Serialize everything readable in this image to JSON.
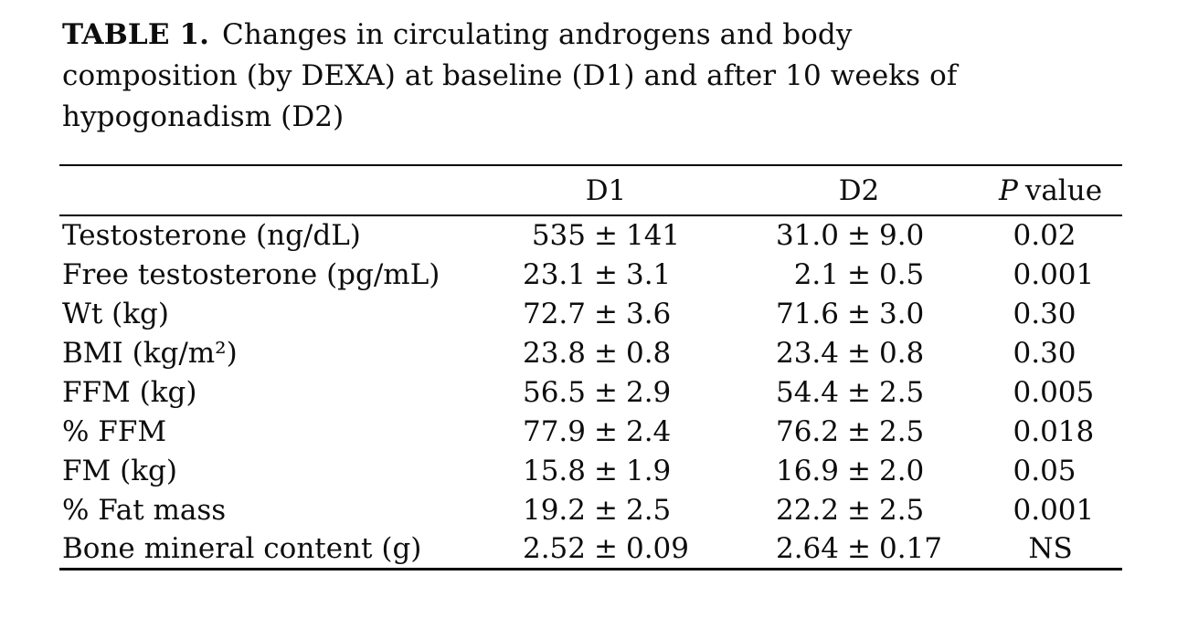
{
  "caption": {
    "label": "TABLE 1.",
    "line1_rest": "Changes in circulating androgens and body",
    "line2": "composition (by DEXA) at baseline (D1) and after 10 weeks of",
    "line3": "hypogonadism (D2)"
  },
  "table": {
    "plus_minus": "±",
    "header": {
      "label_col": "",
      "d1": "D1",
      "d2": "D2",
      "p_italic": "P",
      "p_rest": "value"
    },
    "rows": [
      {
        "label": "Testosterone (ng/dL)",
        "d1_mean": "535",
        "d1_sd": "141",
        "d2_mean": "31.0",
        "d2_sd": "9.0",
        "p": "0.02"
      },
      {
        "label": "Free testosterone (pg/mL)",
        "d1_mean": "23.1",
        "d1_sd": "3.1",
        "d2_mean": "2.1",
        "d2_sd": "0.5",
        "p": "0.001"
      },
      {
        "label": "Wt (kg)",
        "d1_mean": "72.7",
        "d1_sd": "3.6",
        "d2_mean": "71.6",
        "d2_sd": "3.0",
        "p": "0.30"
      },
      {
        "label": "BMI (kg/m²)",
        "d1_mean": "23.8",
        "d1_sd": "0.8",
        "d2_mean": "23.4",
        "d2_sd": "0.8",
        "p": "0.30"
      },
      {
        "label": "FFM (kg)",
        "d1_mean": "56.5",
        "d1_sd": "2.9",
        "d2_mean": "54.4",
        "d2_sd": "2.5",
        "p": "0.005"
      },
      {
        "label": "% FFM",
        "d1_mean": "77.9",
        "d1_sd": "2.4",
        "d2_mean": "76.2",
        "d2_sd": "2.5",
        "p": "0.018"
      },
      {
        "label": "FM (kg)",
        "d1_mean": "15.8",
        "d1_sd": "1.9",
        "d2_mean": "16.9",
        "d2_sd": "2.0",
        "p": "0.05"
      },
      {
        "label": "% Fat mass",
        "d1_mean": "19.2",
        "d1_sd": "2.5",
        "d2_mean": "22.2",
        "d2_sd": "2.5",
        "p": "0.001"
      },
      {
        "label": "Bone mineral content (g)",
        "d1_mean": "2.52",
        "d1_sd": "0.09",
        "d2_mean": "2.64",
        "d2_sd": "0.17",
        "p": "NS"
      }
    ]
  },
  "colors": {
    "background": "#ffffff",
    "text": "#0d0d0d",
    "rule": "#000000"
  }
}
